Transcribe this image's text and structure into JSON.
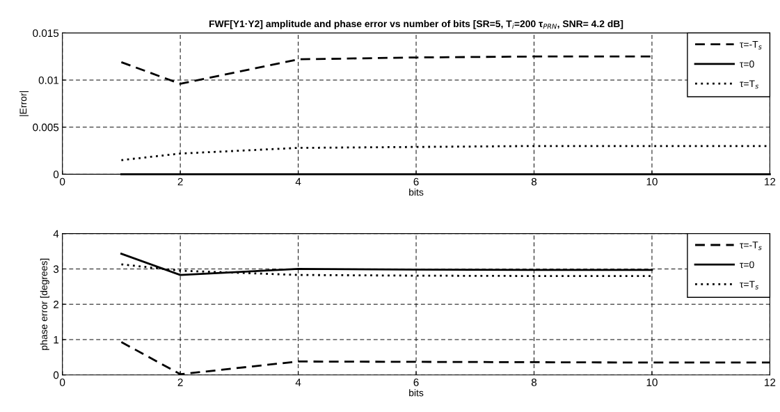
{
  "chart_data": [
    {
      "type": "line",
      "title": "FWF[Y1·Y2] amplitude and phase error vs number of bits [SR=5, T$_{i}$=200 τ$_{PRN}$, SNR= 4.2 dB]",
      "xlabel": "bits",
      "ylabel": "|Error|",
      "x": [
        1,
        2,
        4,
        6,
        8,
        10,
        12
      ],
      "xlim": [
        0,
        12
      ],
      "xticks": [
        0,
        2,
        4,
        6,
        8,
        10,
        12
      ],
      "ylim": [
        0,
        0.015
      ],
      "yticks": [
        0,
        0.005,
        0.01,
        0.015
      ],
      "grid": true,
      "legend": "top right",
      "series": [
        {
          "name": "τ=-T$_{s}$",
          "color": "#000000",
          "line_style": "dashed",
          "values": [
            0.0119,
            0.0096,
            0.0122,
            0.0124,
            0.0125,
            0.0125,
            null
          ]
        },
        {
          "name": "τ=0",
          "color": "#000000",
          "line_style": "solid",
          "values": [
            0,
            0,
            0,
            0,
            0,
            0,
            0
          ]
        },
        {
          "name": "τ=T$_{s}$",
          "color": "#000000",
          "line_style": "dotted",
          "values": [
            0.0015,
            0.0022,
            0.0028,
            0.0029,
            0.003,
            0.003,
            0.003
          ]
        }
      ]
    },
    {
      "type": "line",
      "xlabel": "bits",
      "ylabel": "phase error [degrees]",
      "x": [
        1,
        2,
        4,
        6,
        8,
        10,
        12
      ],
      "xlim": [
        0,
        12
      ],
      "xticks": [
        0,
        2,
        4,
        6,
        8,
        10,
        12
      ],
      "ylim": [
        0,
        4
      ],
      "yticks": [
        0,
        1,
        2,
        3,
        4
      ],
      "grid": true,
      "legend": "top right",
      "series": [
        {
          "name": "τ=-T$_{s}$",
          "color": "#000000",
          "line_style": "dashed",
          "values": [
            0.93,
            0.02,
            0.38,
            0.37,
            0.36,
            0.35,
            0.35
          ]
        },
        {
          "name": "τ=0",
          "color": "#000000",
          "line_style": "solid",
          "values": [
            3.43,
            2.83,
            3.0,
            2.98,
            2.97,
            2.97,
            null
          ]
        },
        {
          "name": "τ=T$_{s}$",
          "color": "#000000",
          "line_style": "dotted",
          "values": [
            3.13,
            2.95,
            2.83,
            2.81,
            2.8,
            2.8,
            null
          ]
        }
      ]
    }
  ]
}
